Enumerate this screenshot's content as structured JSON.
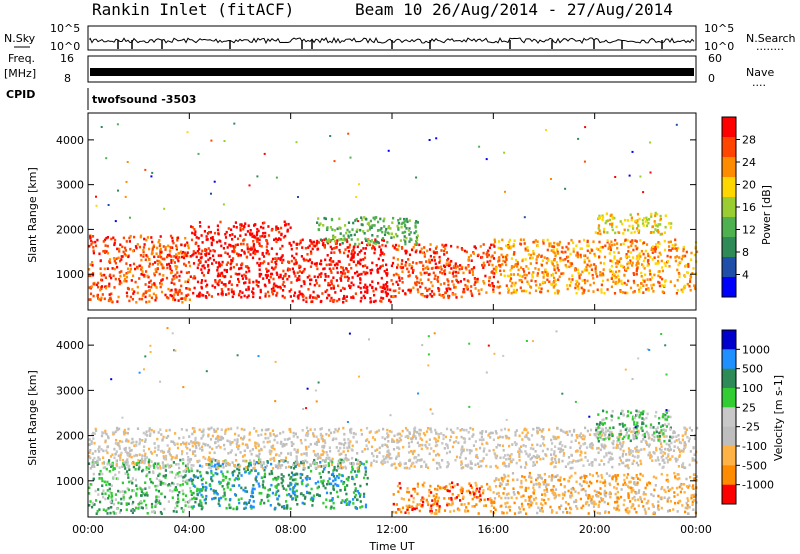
{
  "header": {
    "title": "Rankin Inlet (fitACF)",
    "beam_date": "Beam 10 26/Aug/2014 - 27/Aug/2014"
  },
  "strip_labels": {
    "nsky": "N.Sky",
    "nsearch": "N.Search",
    "freq": "Freq.",
    "freq_unit": "[MHz]",
    "nave": "Nave",
    "cpid": "CPID",
    "cpid_value": "twofsound -3503",
    "dots_a": "........",
    "dots_b": "...."
  },
  "strip_ticks": {
    "noise_left": [
      "10^5",
      "10^0"
    ],
    "noise_right": [
      "10^5",
      "10^0"
    ],
    "freq_left": [
      "16",
      "8"
    ],
    "nave_right": [
      "60",
      "0"
    ]
  },
  "colors": {
    "power": [
      "#0000ff",
      "#1f4fa8",
      "#2e8b57",
      "#4fb04f",
      "#9acd32",
      "#ffd700",
      "#ff8c00",
      "#ff4500",
      "#ff0000"
    ],
    "velocity": [
      "#ff0000",
      "#ff8c00",
      "#ffb347",
      "#bebebe",
      "#c8c8c8",
      "#32cd32",
      "#2e8b57",
      "#1e90ff",
      "#0000cd"
    ]
  },
  "chart_data": [
    {
      "type": "heatmap",
      "name": "Power",
      "ylabel": "Slant Range [km]",
      "ylim": [
        200,
        4600
      ],
      "xlim": [
        0,
        24
      ],
      "yticks": [
        "1000",
        "2000",
        "3000",
        "4000"
      ],
      "colorbar_label": "Power [dB]",
      "colorbar_ticks": [
        "4",
        "8",
        "12",
        "16",
        "20",
        "24",
        "28"
      ],
      "bands": [
        {
          "t0": 0,
          "t1": 4,
          "r0": 400,
          "r1": 1900,
          "level": 7
        },
        {
          "t0": 4,
          "t1": 8,
          "r0": 500,
          "r1": 2200,
          "level": 8
        },
        {
          "t0": 8,
          "t1": 12,
          "r0": 400,
          "r1": 1800,
          "level": 8
        },
        {
          "t0": 12,
          "t1": 16,
          "r0": 500,
          "r1": 1700,
          "level": 7
        },
        {
          "t0": 16,
          "t1": 24,
          "r0": 600,
          "r1": 1800,
          "level": 6
        },
        {
          "t0": 9,
          "t1": 13,
          "r0": 1700,
          "r1": 2300,
          "level": 3
        },
        {
          "t0": 20,
          "t1": 23,
          "r0": 1900,
          "r1": 2400,
          "level": 5
        }
      ]
    },
    {
      "type": "heatmap",
      "name": "Velocity",
      "ylabel": "Slant Range [km]",
      "ylim": [
        200,
        4600
      ],
      "xlim": [
        0,
        24
      ],
      "yticks": [
        "1000",
        "2000",
        "3000",
        "4000"
      ],
      "xticks": [
        "00:00",
        "04:00",
        "08:00",
        "12:00",
        "16:00",
        "20:00",
        "00:00"
      ],
      "xlabel": "Time UT",
      "colorbar_label": "Velocity [m s-1]",
      "colorbar_ticks": [
        "1000",
        "500",
        "100",
        "25",
        "-25",
        "-100",
        "-500",
        "-1000"
      ],
      "bands": [
        {
          "t0": 0,
          "t1": 4,
          "r0": 300,
          "r1": 1500,
          "level": 5
        },
        {
          "t0": 4,
          "t1": 11,
          "r0": 400,
          "r1": 1500,
          "level": 6
        },
        {
          "t0": 0,
          "t1": 24,
          "r0": 1300,
          "r1": 2200,
          "level": 3
        },
        {
          "t0": 12,
          "t1": 16,
          "r0": 300,
          "r1": 1000,
          "level": 1
        },
        {
          "t0": 16,
          "t1": 24,
          "r0": 300,
          "r1": 1200,
          "level": 2
        },
        {
          "t0": 20,
          "t1": 23,
          "r0": 1900,
          "r1": 2600,
          "level": 5
        }
      ]
    }
  ]
}
